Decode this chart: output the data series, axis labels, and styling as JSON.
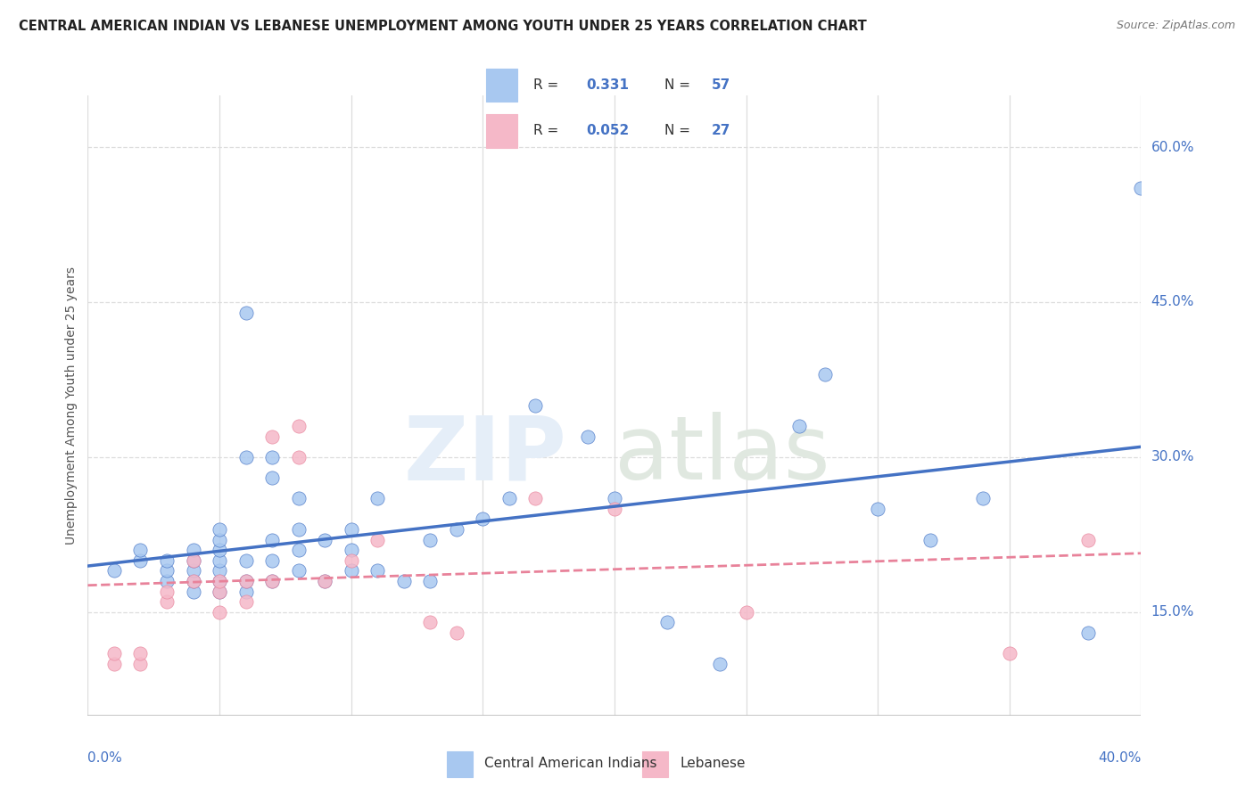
{
  "title": "CENTRAL AMERICAN INDIAN VS LEBANESE UNEMPLOYMENT AMONG YOUTH UNDER 25 YEARS CORRELATION CHART",
  "source": "Source: ZipAtlas.com",
  "ylabel": "Unemployment Among Youth under 25 years",
  "y_ticks": [
    0.15,
    0.3,
    0.45,
    0.6
  ],
  "y_tick_labels": [
    "15.0%",
    "30.0%",
    "45.0%",
    "60.0%"
  ],
  "x_range": [
    0.0,
    0.4
  ],
  "y_range": [
    0.05,
    0.65
  ],
  "r_blue": 0.331,
  "n_blue": 57,
  "r_pink": 0.052,
  "n_pink": 27,
  "blue_color": "#A8C8F0",
  "pink_color": "#F5B8C8",
  "line_blue": "#4472C4",
  "line_pink": "#E8829A",
  "legend_label_blue": "Central American Indians",
  "legend_label_pink": "Lebanese",
  "blue_scatter_x": [
    0.01,
    0.02,
    0.02,
    0.03,
    0.03,
    0.03,
    0.04,
    0.04,
    0.04,
    0.04,
    0.04,
    0.05,
    0.05,
    0.05,
    0.05,
    0.05,
    0.05,
    0.05,
    0.06,
    0.06,
    0.06,
    0.06,
    0.06,
    0.07,
    0.07,
    0.07,
    0.07,
    0.07,
    0.08,
    0.08,
    0.08,
    0.08,
    0.09,
    0.09,
    0.1,
    0.1,
    0.1,
    0.11,
    0.11,
    0.12,
    0.13,
    0.13,
    0.14,
    0.15,
    0.16,
    0.17,
    0.19,
    0.2,
    0.22,
    0.24,
    0.27,
    0.28,
    0.3,
    0.32,
    0.34,
    0.38,
    0.4
  ],
  "blue_scatter_y": [
    0.19,
    0.2,
    0.21,
    0.18,
    0.19,
    0.2,
    0.17,
    0.18,
    0.19,
    0.2,
    0.21,
    0.17,
    0.18,
    0.19,
    0.2,
    0.21,
    0.22,
    0.23,
    0.17,
    0.18,
    0.2,
    0.3,
    0.44,
    0.18,
    0.2,
    0.22,
    0.28,
    0.3,
    0.19,
    0.21,
    0.23,
    0.26,
    0.18,
    0.22,
    0.19,
    0.21,
    0.23,
    0.19,
    0.26,
    0.18,
    0.18,
    0.22,
    0.23,
    0.24,
    0.26,
    0.35,
    0.32,
    0.26,
    0.14,
    0.1,
    0.33,
    0.38,
    0.25,
    0.22,
    0.26,
    0.13,
    0.56
  ],
  "pink_scatter_x": [
    0.01,
    0.01,
    0.02,
    0.02,
    0.03,
    0.03,
    0.04,
    0.04,
    0.05,
    0.05,
    0.05,
    0.06,
    0.06,
    0.07,
    0.07,
    0.08,
    0.08,
    0.09,
    0.1,
    0.11,
    0.13,
    0.14,
    0.17,
    0.2,
    0.25,
    0.35,
    0.38
  ],
  "pink_scatter_y": [
    0.1,
    0.11,
    0.1,
    0.11,
    0.16,
    0.17,
    0.18,
    0.2,
    0.15,
    0.17,
    0.18,
    0.16,
    0.18,
    0.18,
    0.32,
    0.3,
    0.33,
    0.18,
    0.2,
    0.22,
    0.14,
    0.13,
    0.26,
    0.25,
    0.15,
    0.11,
    0.22
  ],
  "grid_color": "#DDDDDD",
  "background_color": "#FFFFFF"
}
